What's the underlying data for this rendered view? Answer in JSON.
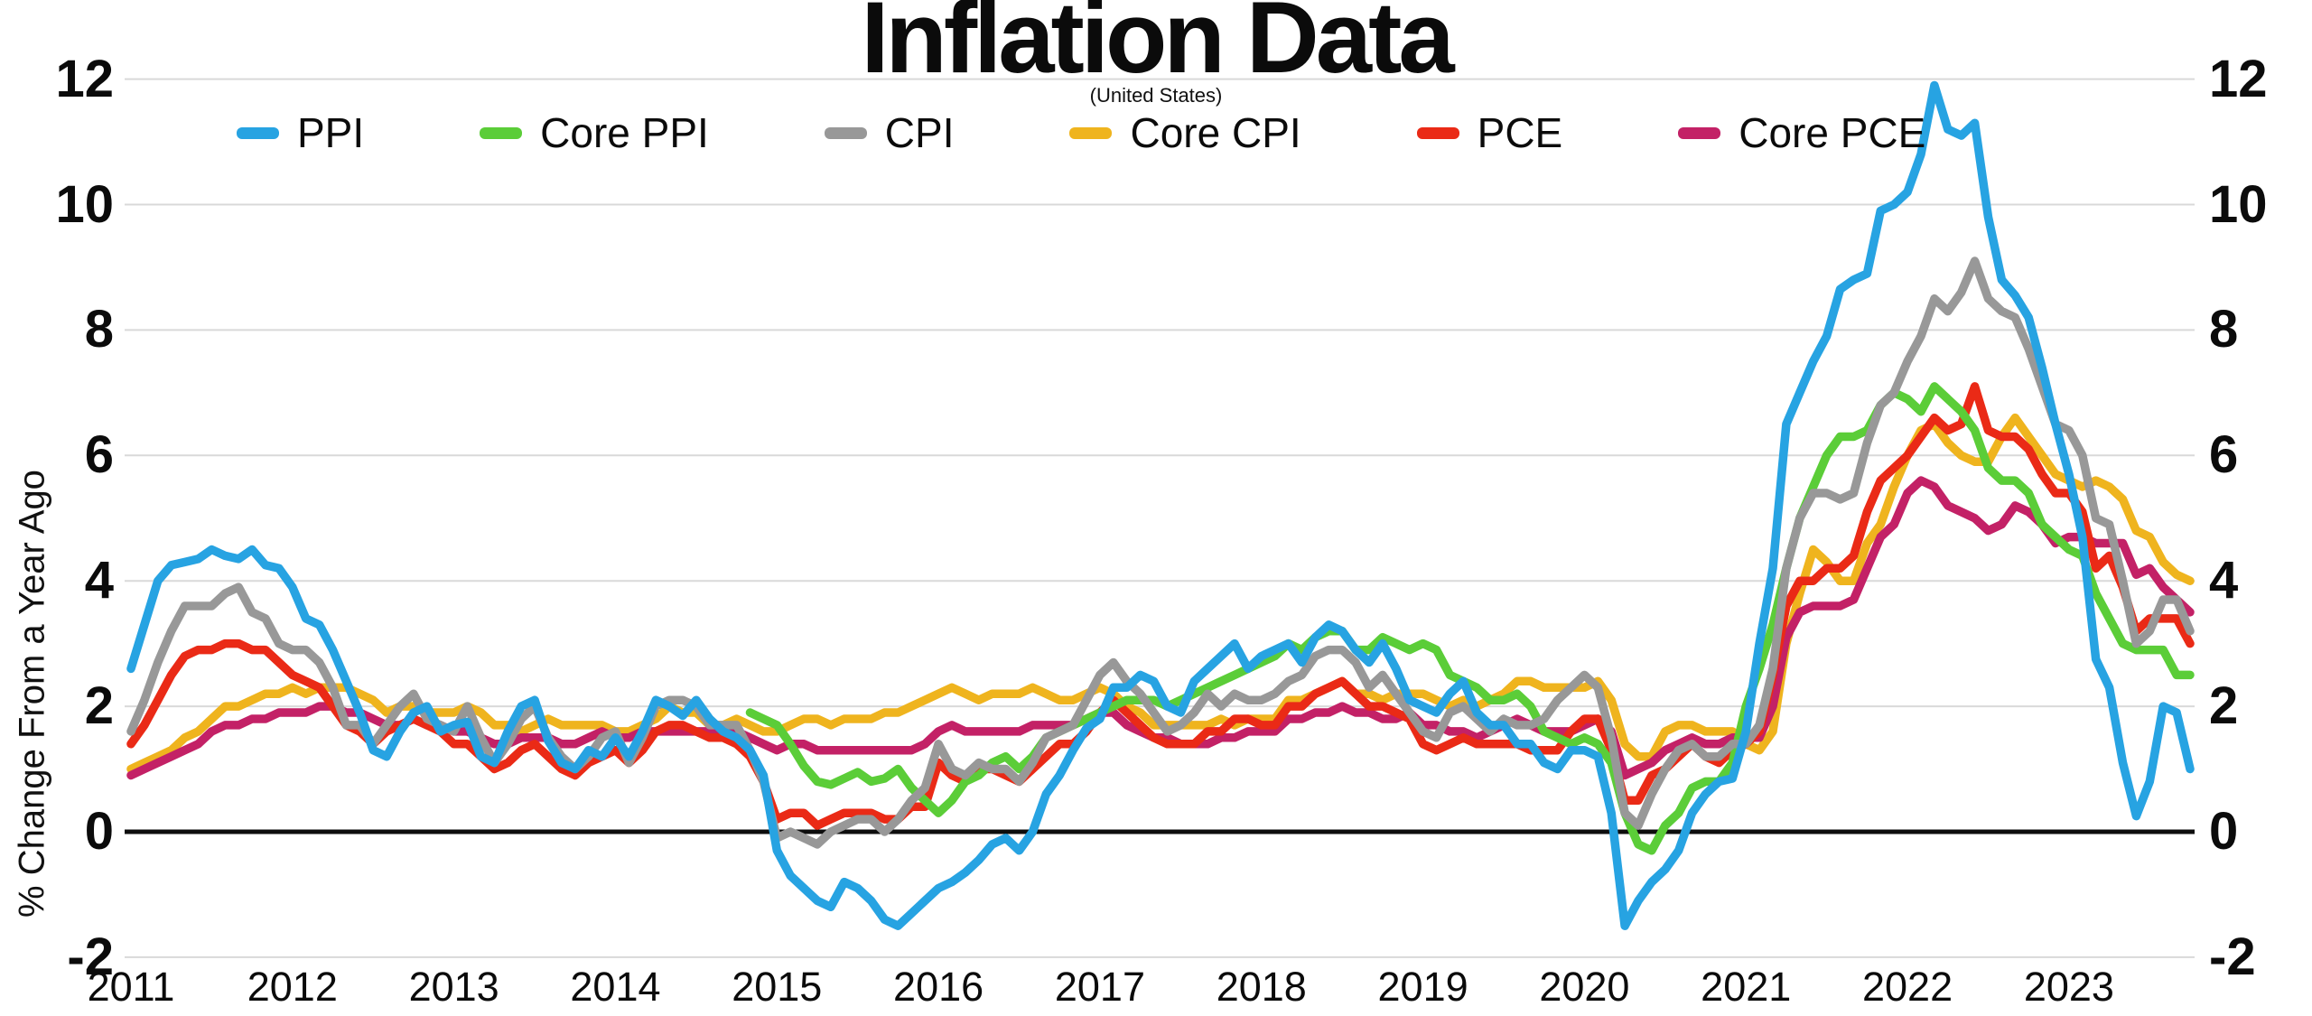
{
  "header": {
    "title": "Inflation Data",
    "subtitle": "(United States)"
  },
  "y_axis": {
    "title": "% Change From a Year Ago",
    "ticks": [
      12,
      10,
      8,
      6,
      4,
      2,
      0,
      -2
    ]
  },
  "x_axis": {
    "ticks": [
      "2011",
      "2012",
      "2013",
      "2014",
      "2015",
      "2016",
      "2017",
      "2018",
      "2019",
      "2020",
      "2021",
      "2022",
      "2023"
    ]
  },
  "chart_data": {
    "type": "line",
    "title": "Inflation Data",
    "subtitle": "(United States)",
    "ylabel": "% Change From a Year Ago",
    "ylim": [
      -2,
      12
    ],
    "y_ticks": [
      12,
      10,
      8,
      6,
      4,
      2,
      0,
      -2
    ],
    "x_tick_labels": [
      "2011",
      "2012",
      "2013",
      "2014",
      "2015",
      "2016",
      "2017",
      "2018",
      "2019",
      "2020",
      "2021",
      "2022",
      "2023"
    ],
    "x_range": [
      "2011-01",
      "2023-10"
    ],
    "frequency": "monthly",
    "grid": "horizontal",
    "zero_line": true,
    "legend_position": "top",
    "draw_order": [
      "Core CPI",
      "Core PCE",
      "PCE",
      "Core PPI",
      "CPI",
      "PPI"
    ],
    "series": [
      {
        "name": "PPI",
        "color": "#27A3E2",
        "start": "2011-01",
        "start_index": 0,
        "values": [
          2.6,
          3.3,
          4.0,
          4.25,
          4.3,
          4.35,
          4.5,
          4.4,
          4.35,
          4.5,
          4.25,
          4.2,
          3.9,
          3.4,
          3.3,
          2.9,
          2.4,
          1.9,
          1.3,
          1.2,
          1.6,
          1.9,
          2.0,
          1.6,
          1.7,
          1.75,
          1.2,
          1.1,
          1.6,
          2.0,
          2.1,
          1.45,
          1.1,
          1.0,
          1.3,
          1.2,
          1.5,
          1.2,
          1.6,
          2.1,
          2.0,
          1.85,
          2.1,
          1.8,
          1.6,
          1.5,
          1.3,
          0.9,
          -0.3,
          -0.7,
          -0.9,
          -1.1,
          -1.2,
          -0.8,
          -0.9,
          -1.1,
          -1.4,
          -1.5,
          -1.3,
          -1.1,
          -0.9,
          -0.8,
          -0.65,
          -0.45,
          -0.2,
          -0.1,
          -0.3,
          0.0,
          0.6,
          0.9,
          1.3,
          1.65,
          1.8,
          2.3,
          2.3,
          2.5,
          2.4,
          2.0,
          1.9,
          2.4,
          2.6,
          2.8,
          3.0,
          2.6,
          2.8,
          2.9,
          3.0,
          2.7,
          3.1,
          3.3,
          3.2,
          2.9,
          2.7,
          3.0,
          2.6,
          2.1,
          2.0,
          1.9,
          2.2,
          2.4,
          1.9,
          1.7,
          1.7,
          1.4,
          1.4,
          1.1,
          1.0,
          1.3,
          1.3,
          1.2,
          0.3,
          -1.5,
          -1.1,
          -0.8,
          -0.6,
          -0.3,
          0.3,
          0.6,
          0.8,
          0.85,
          1.6,
          3.0,
          4.2,
          6.5,
          7.0,
          7.5,
          7.9,
          8.65,
          8.8,
          8.9,
          9.9,
          10.0,
          10.2,
          10.8,
          11.9,
          11.2,
          11.1,
          11.3,
          9.8,
          8.8,
          8.55,
          8.2,
          7.4,
          6.5,
          5.7,
          4.7,
          2.75,
          2.3,
          1.1,
          0.25,
          0.8,
          2.0,
          1.9,
          1.0
        ]
      },
      {
        "name": "Core PPI",
        "color": "#5BCD38",
        "start": "2014-11",
        "start_index": 46,
        "values": [
          1.9,
          1.8,
          1.7,
          1.4,
          1.05,
          0.8,
          0.75,
          0.85,
          0.95,
          0.8,
          0.85,
          1.0,
          0.7,
          0.5,
          0.3,
          0.5,
          0.8,
          0.9,
          1.1,
          1.2,
          1.0,
          1.2,
          1.5,
          1.6,
          1.7,
          1.8,
          1.9,
          2.0,
          2.1,
          2.1,
          2.1,
          2.0,
          2.1,
          2.2,
          2.3,
          2.4,
          2.5,
          2.6,
          2.7,
          2.8,
          3.0,
          2.9,
          3.1,
          3.2,
          3.2,
          2.9,
          2.9,
          3.1,
          3.0,
          2.9,
          3.0,
          2.9,
          2.5,
          2.4,
          2.3,
          2.1,
          2.1,
          2.2,
          2.0,
          1.6,
          1.5,
          1.4,
          1.5,
          1.4,
          1.1,
          0.3,
          -0.2,
          -0.3,
          0.1,
          0.3,
          0.7,
          0.8,
          0.8,
          1.1,
          2.0,
          2.6,
          3.3,
          4.2,
          5.0,
          5.5,
          6.0,
          6.3,
          6.3,
          6.4,
          6.8,
          7.0,
          6.9,
          6.7,
          7.1,
          6.9,
          6.7,
          6.4,
          5.8,
          5.6,
          5.6,
          5.4,
          4.9,
          4.7,
          4.5,
          4.4,
          3.8,
          3.4,
          3.0,
          2.9,
          2.9,
          2.9,
          2.5,
          2.5
        ]
      },
      {
        "name": "CPI",
        "color": "#989898",
        "start": "2011-01",
        "start_index": 0,
        "values": [
          1.6,
          2.1,
          2.7,
          3.2,
          3.6,
          3.6,
          3.6,
          3.8,
          3.9,
          3.5,
          3.4,
          3.0,
          2.9,
          2.9,
          2.7,
          2.3,
          1.7,
          1.7,
          1.4,
          1.7,
          2.0,
          2.2,
          1.8,
          1.7,
          1.6,
          2.0,
          1.5,
          1.1,
          1.4,
          1.8,
          2.0,
          1.5,
          1.2,
          1.0,
          1.2,
          1.5,
          1.6,
          1.1,
          1.5,
          2.0,
          2.1,
          2.1,
          2.0,
          1.7,
          1.7,
          1.7,
          1.3,
          0.8,
          -0.1,
          0.0,
          -0.1,
          -0.2,
          0.0,
          0.1,
          0.2,
          0.2,
          0.0,
          0.2,
          0.5,
          0.7,
          1.4,
          1.0,
          0.9,
          1.1,
          1.0,
          1.0,
          0.8,
          1.1,
          1.5,
          1.6,
          1.7,
          2.1,
          2.5,
          2.7,
          2.4,
          2.2,
          1.9,
          1.6,
          1.7,
          1.9,
          2.2,
          2.0,
          2.2,
          2.1,
          2.1,
          2.2,
          2.4,
          2.5,
          2.8,
          2.9,
          2.9,
          2.7,
          2.3,
          2.5,
          2.2,
          1.9,
          1.6,
          1.5,
          1.9,
          2.0,
          1.8,
          1.6,
          1.8,
          1.7,
          1.7,
          1.8,
          2.1,
          2.3,
          2.5,
          2.3,
          1.5,
          0.3,
          0.1,
          0.6,
          1.0,
          1.3,
          1.4,
          1.2,
          1.2,
          1.4,
          1.4,
          1.7,
          2.6,
          4.2,
          5.0,
          5.4,
          5.4,
          5.3,
          5.4,
          6.2,
          6.8,
          7.0,
          7.5,
          7.9,
          8.5,
          8.3,
          8.6,
          9.1,
          8.5,
          8.3,
          8.2,
          7.7,
          7.1,
          6.5,
          6.4,
          6.0,
          5.0,
          4.9,
          4.0,
          3.0,
          3.2,
          3.7,
          3.7,
          3.2
        ]
      },
      {
        "name": "Core CPI",
        "color": "#EFB41E",
        "start": "2011-01",
        "start_index": 0,
        "values": [
          1.0,
          1.1,
          1.2,
          1.3,
          1.5,
          1.6,
          1.8,
          2.0,
          2.0,
          2.1,
          2.2,
          2.2,
          2.3,
          2.2,
          2.3,
          2.3,
          2.3,
          2.2,
          2.1,
          1.9,
          2.0,
          2.0,
          1.9,
          1.9,
          1.9,
          2.0,
          1.9,
          1.7,
          1.7,
          1.6,
          1.7,
          1.8,
          1.7,
          1.7,
          1.7,
          1.7,
          1.6,
          1.6,
          1.7,
          1.8,
          2.0,
          1.9,
          1.9,
          1.7,
          1.7,
          1.8,
          1.7,
          1.6,
          1.6,
          1.7,
          1.8,
          1.8,
          1.7,
          1.8,
          1.8,
          1.8,
          1.9,
          1.9,
          2.0,
          2.1,
          2.2,
          2.3,
          2.2,
          2.1,
          2.2,
          2.2,
          2.2,
          2.3,
          2.2,
          2.1,
          2.1,
          2.2,
          2.3,
          2.2,
          2.0,
          1.9,
          1.7,
          1.7,
          1.7,
          1.7,
          1.7,
          1.8,
          1.7,
          1.8,
          1.8,
          1.8,
          2.1,
          2.1,
          2.2,
          2.3,
          2.4,
          2.2,
          2.2,
          2.1,
          2.2,
          2.2,
          2.2,
          2.1,
          2.0,
          2.1,
          2.0,
          2.1,
          2.2,
          2.4,
          2.4,
          2.3,
          2.3,
          2.3,
          2.3,
          2.4,
          2.1,
          1.4,
          1.2,
          1.2,
          1.6,
          1.7,
          1.7,
          1.6,
          1.6,
          1.6,
          1.4,
          1.3,
          1.6,
          3.0,
          3.8,
          4.5,
          4.3,
          4.0,
          4.0,
          4.6,
          4.9,
          5.5,
          6.0,
          6.4,
          6.5,
          6.2,
          6.0,
          5.9,
          5.9,
          6.3,
          6.6,
          6.3,
          6.0,
          5.7,
          5.6,
          5.5,
          5.6,
          5.5,
          5.3,
          4.8,
          4.7,
          4.3,
          4.1,
          4.0
        ]
      },
      {
        "name": "PCE",
        "color": "#EA2A16",
        "start": "2011-01",
        "start_index": 0,
        "values": [
          1.4,
          1.7,
          2.1,
          2.5,
          2.8,
          2.9,
          2.9,
          3.0,
          3.0,
          2.9,
          2.9,
          2.7,
          2.5,
          2.4,
          2.3,
          2.0,
          1.7,
          1.6,
          1.4,
          1.6,
          1.7,
          1.8,
          1.7,
          1.6,
          1.4,
          1.4,
          1.2,
          1.0,
          1.1,
          1.3,
          1.4,
          1.2,
          1.0,
          0.9,
          1.1,
          1.2,
          1.3,
          1.1,
          1.3,
          1.6,
          1.7,
          1.7,
          1.6,
          1.5,
          1.5,
          1.4,
          1.2,
          0.8,
          0.2,
          0.3,
          0.3,
          0.1,
          0.2,
          0.3,
          0.3,
          0.3,
          0.2,
          0.2,
          0.4,
          0.4,
          1.1,
          0.9,
          0.8,
          1.0,
          1.0,
          0.9,
          0.8,
          1.0,
          1.2,
          1.4,
          1.4,
          1.6,
          1.9,
          2.1,
          1.9,
          1.7,
          1.5,
          1.4,
          1.4,
          1.4,
          1.6,
          1.6,
          1.8,
          1.8,
          1.7,
          1.7,
          2.0,
          2.0,
          2.2,
          2.3,
          2.4,
          2.2,
          2.0,
          2.0,
          1.9,
          1.8,
          1.4,
          1.3,
          1.4,
          1.5,
          1.4,
          1.4,
          1.4,
          1.4,
          1.3,
          1.3,
          1.3,
          1.6,
          1.8,
          1.8,
          1.3,
          0.5,
          0.5,
          0.9,
          1.0,
          1.2,
          1.4,
          1.2,
          1.1,
          1.3,
          1.4,
          1.6,
          2.5,
          3.6,
          4.0,
          4.0,
          4.2,
          4.2,
          4.4,
          5.1,
          5.6,
          5.8,
          6.0,
          6.3,
          6.6,
          6.4,
          6.5,
          7.1,
          6.4,
          6.3,
          6.3,
          6.1,
          5.7,
          5.4,
          5.4,
          5.1,
          4.2,
          4.4,
          3.9,
          3.2,
          3.4,
          3.4,
          3.4,
          3.0
        ]
      },
      {
        "name": "Core PCE",
        "color": "#C32166",
        "start": "2011-01",
        "start_index": 0,
        "values": [
          0.9,
          1.0,
          1.1,
          1.2,
          1.3,
          1.4,
          1.6,
          1.7,
          1.7,
          1.8,
          1.8,
          1.9,
          1.9,
          1.9,
          2.0,
          2.0,
          1.9,
          1.9,
          1.8,
          1.7,
          1.7,
          1.8,
          1.7,
          1.7,
          1.6,
          1.6,
          1.5,
          1.4,
          1.4,
          1.5,
          1.5,
          1.5,
          1.4,
          1.4,
          1.5,
          1.6,
          1.5,
          1.5,
          1.6,
          1.6,
          1.6,
          1.6,
          1.6,
          1.6,
          1.6,
          1.6,
          1.5,
          1.4,
          1.3,
          1.4,
          1.4,
          1.3,
          1.3,
          1.3,
          1.3,
          1.3,
          1.3,
          1.3,
          1.3,
          1.4,
          1.6,
          1.7,
          1.6,
          1.6,
          1.6,
          1.6,
          1.6,
          1.7,
          1.7,
          1.7,
          1.7,
          1.8,
          1.9,
          1.9,
          1.7,
          1.6,
          1.5,
          1.5,
          1.4,
          1.4,
          1.4,
          1.5,
          1.5,
          1.6,
          1.6,
          1.6,
          1.8,
          1.8,
          1.9,
          1.9,
          2.0,
          1.9,
          1.9,
          1.8,
          1.8,
          1.9,
          1.7,
          1.7,
          1.6,
          1.6,
          1.5,
          1.6,
          1.7,
          1.8,
          1.7,
          1.6,
          1.6,
          1.6,
          1.7,
          1.8,
          1.6,
          0.9,
          1.0,
          1.1,
          1.3,
          1.4,
          1.5,
          1.4,
          1.4,
          1.5,
          1.5,
          1.5,
          2.0,
          3.1,
          3.5,
          3.6,
          3.6,
          3.6,
          3.7,
          4.2,
          4.7,
          4.9,
          5.4,
          5.6,
          5.5,
          5.2,
          5.1,
          5.0,
          4.8,
          4.9,
          5.2,
          5.1,
          4.9,
          4.6,
          4.7,
          4.7,
          4.6,
          4.6,
          4.6,
          4.1,
          4.2,
          3.9,
          3.7,
          3.5
        ]
      }
    ]
  },
  "style": {
    "grid_color": "#d9d9d9",
    "zero_line_color": "#0d0d0d",
    "text_color": "#0b0b0b",
    "background": "#ffffff"
  }
}
